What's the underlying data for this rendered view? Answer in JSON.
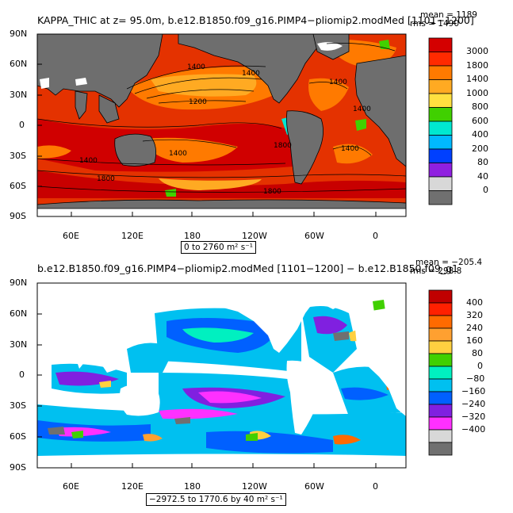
{
  "panel1": {
    "title": "KAPPA_THIC at z=  95.0m, b.e12.B1850.f09_g16.PIMP4−pliomip2.modMed [1101−1200]",
    "mean_text": "mean = 1189",
    "rms_text": "rms = 1490",
    "range_text": "0 to 2760 m² s⁻¹",
    "contour_labels": [
      "1400",
      "1400",
      "1200",
      "1400",
      "1800",
      "1400",
      "1800",
      "1400",
      "1800",
      "1400",
      "1400"
    ],
    "colorbar": {
      "labels": [
        "3000",
        "1800",
        "1400",
        "1000",
        "800",
        "600",
        "400",
        "200",
        "80",
        "40",
        "0"
      ],
      "colors": [
        "#d40000",
        "#ff2a00",
        "#ff7a00",
        "#ffaa22",
        "#ffe040",
        "#40d000",
        "#00e8d0",
        "#00b8ff",
        "#0040ff",
        "#9020e0",
        "#d8d8d8",
        "#707070"
      ]
    }
  },
  "panel2": {
    "title": "b.e12.B1850.f09_g16.PIMP4−pliomip2.modMed [1101−1200] − b.e12.B1850.f09_g1",
    "mean_text": "mean = −205.4",
    "rms_text": "rms = 298.8",
    "range_text": "−2972.5 to 1770.6 by 40 m² s⁻¹",
    "colorbar": {
      "labels": [
        "400",
        "320",
        "240",
        "160",
        "80",
        "0",
        "−80",
        "−160",
        "−240",
        "−320",
        "−400"
      ],
      "colors": [
        "#c00000",
        "#ff2000",
        "#ff6a00",
        "#ffa030",
        "#ffd040",
        "#40d000",
        "#00f0c0",
        "#00c0f0",
        "#0060ff",
        "#8020e0",
        "#ff30ff",
        "#d8d8d8",
        "#707070"
      ]
    }
  },
  "axes": {
    "lat_labels": [
      "90N",
      "60N",
      "30N",
      "0",
      "30S",
      "60S",
      "90S"
    ],
    "lon_labels": [
      "60E",
      "120E",
      "180",
      "120W",
      "60W",
      "0"
    ]
  },
  "colors": {
    "land1": "#6e6e6e",
    "ocean_bg1": "#e03000",
    "frame": "#000000"
  }
}
